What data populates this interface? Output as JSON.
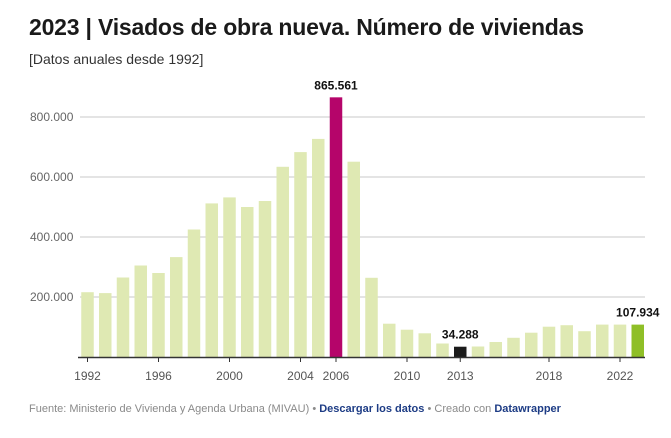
{
  "header": {
    "title": "2023 | Visados de obra nueva. Número de viviendas",
    "subtitle": "[Datos anuales desde 1992]"
  },
  "footer": {
    "source_text": "Fuente: Ministerio de Vivienda y Agenda Urbana (MIVAU)",
    "separator": "•",
    "download_link": "Descargar los datos",
    "created_with": "Creado con",
    "tool_link": "Datawrapper"
  },
  "colors": {
    "default_bar": "#dfe9b3",
    "max_bar": "#b5056a",
    "min_bar": "#1b1b1b",
    "last_bar": "#8fbf27",
    "grid": "#c8c8c8",
    "axis": "#333333"
  },
  "chart_data": {
    "type": "bar",
    "title": "2023 | Visados de obra nueva. Número de viviendas",
    "subtitle": "[Datos anuales desde 1992]",
    "xlabel": "",
    "ylabel": "",
    "ylim": [
      0,
      865561
    ],
    "yticks": [
      200000,
      400000,
      600000,
      800000
    ],
    "ytick_labels": [
      "200.000",
      "400.000",
      "600.000",
      "800.000"
    ],
    "xtick_years": [
      1992,
      1996,
      2000,
      2004,
      2006,
      2010,
      2013,
      2018,
      2022
    ],
    "xtick_labels": [
      "1992",
      "1996",
      "2000",
      "2004",
      "2006",
      "2010",
      "2013",
      "2018",
      "2022"
    ],
    "categories": [
      1992,
      1993,
      1994,
      1995,
      1996,
      1997,
      1998,
      1999,
      2000,
      2001,
      2002,
      2003,
      2004,
      2005,
      2006,
      2007,
      2008,
      2009,
      2010,
      2011,
      2012,
      2013,
      2014,
      2015,
      2016,
      2017,
      2018,
      2019,
      2020,
      2021,
      2022,
      2023
    ],
    "values": [
      216000,
      213000,
      265000,
      305000,
      280000,
      333000,
      425000,
      512000,
      532000,
      500000,
      520000,
      634000,
      683000,
      727000,
      865561,
      651000,
      264000,
      111000,
      91000,
      79000,
      45000,
      34288,
      35000,
      50000,
      64000,
      81000,
      101000,
      106000,
      86000,
      108000,
      108000,
      107934
    ],
    "highlights": [
      {
        "year": 2006,
        "role": "max_bar",
        "label": "865.561"
      },
      {
        "year": 2013,
        "role": "min_bar",
        "label": "34.288"
      },
      {
        "year": 2023,
        "role": "last_bar",
        "label": "107.934"
      }
    ],
    "grid": true,
    "legend": "none"
  }
}
